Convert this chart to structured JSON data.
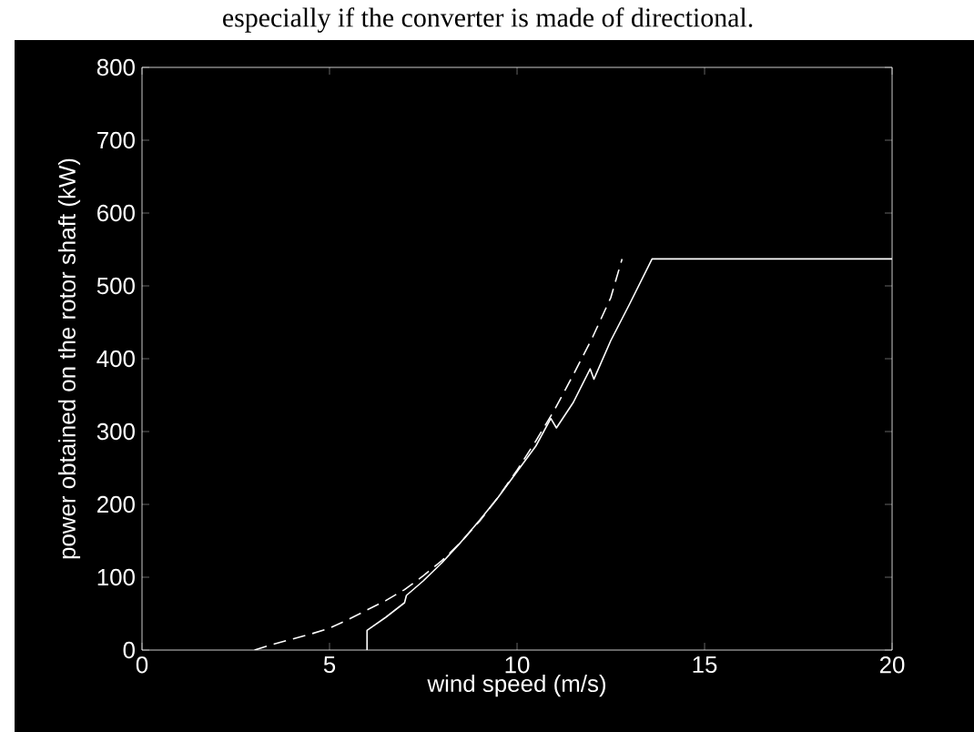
{
  "chart_data": {
    "type": "line",
    "xlabel": "wind speed (m/s)",
    "ylabel": "power obtained on the rotor shaft (kW)",
    "annotations": [
      "especially if the converter is made of directional."
    ],
    "xlim": [
      0,
      20
    ],
    "ylim": [
      0,
      800
    ],
    "xticks": [
      0,
      5,
      10,
      15,
      20
    ],
    "yticks": [
      0,
      100,
      200,
      300,
      400,
      500,
      600,
      700,
      800
    ],
    "grid": false,
    "marker": "none",
    "series": [
      {
        "color": "#ffffff",
        "line_style": "solid",
        "x": [
          6,
          6,
          6.5,
          7,
          7.05,
          7.5,
          8,
          8.5,
          9,
          9.5,
          10,
          10.5,
          10.9,
          11.05,
          11.5,
          11.95,
          12.05,
          12.5,
          13,
          13.6,
          20
        ],
        "values": [
          0,
          27,
          45,
          65,
          75,
          95,
          120,
          148,
          178,
          210,
          245,
          280,
          318,
          305,
          340,
          386,
          372,
          425,
          475,
          537,
          537
        ]
      },
      {
        "color": "#ffffff",
        "line_style": "dashed",
        "x": [
          3,
          3.5,
          4,
          4.5,
          5,
          5.5,
          6,
          6.5,
          7,
          7.5,
          8,
          8.5,
          9,
          9.5,
          10,
          10.5,
          11,
          11.5,
          12,
          12.5,
          12.8
        ],
        "values": [
          0,
          8,
          15,
          22,
          30,
          42,
          55,
          68,
          83,
          102,
          123,
          148,
          177,
          210,
          247,
          287,
          330,
          378,
          428,
          484,
          537
        ]
      }
    ]
  }
}
